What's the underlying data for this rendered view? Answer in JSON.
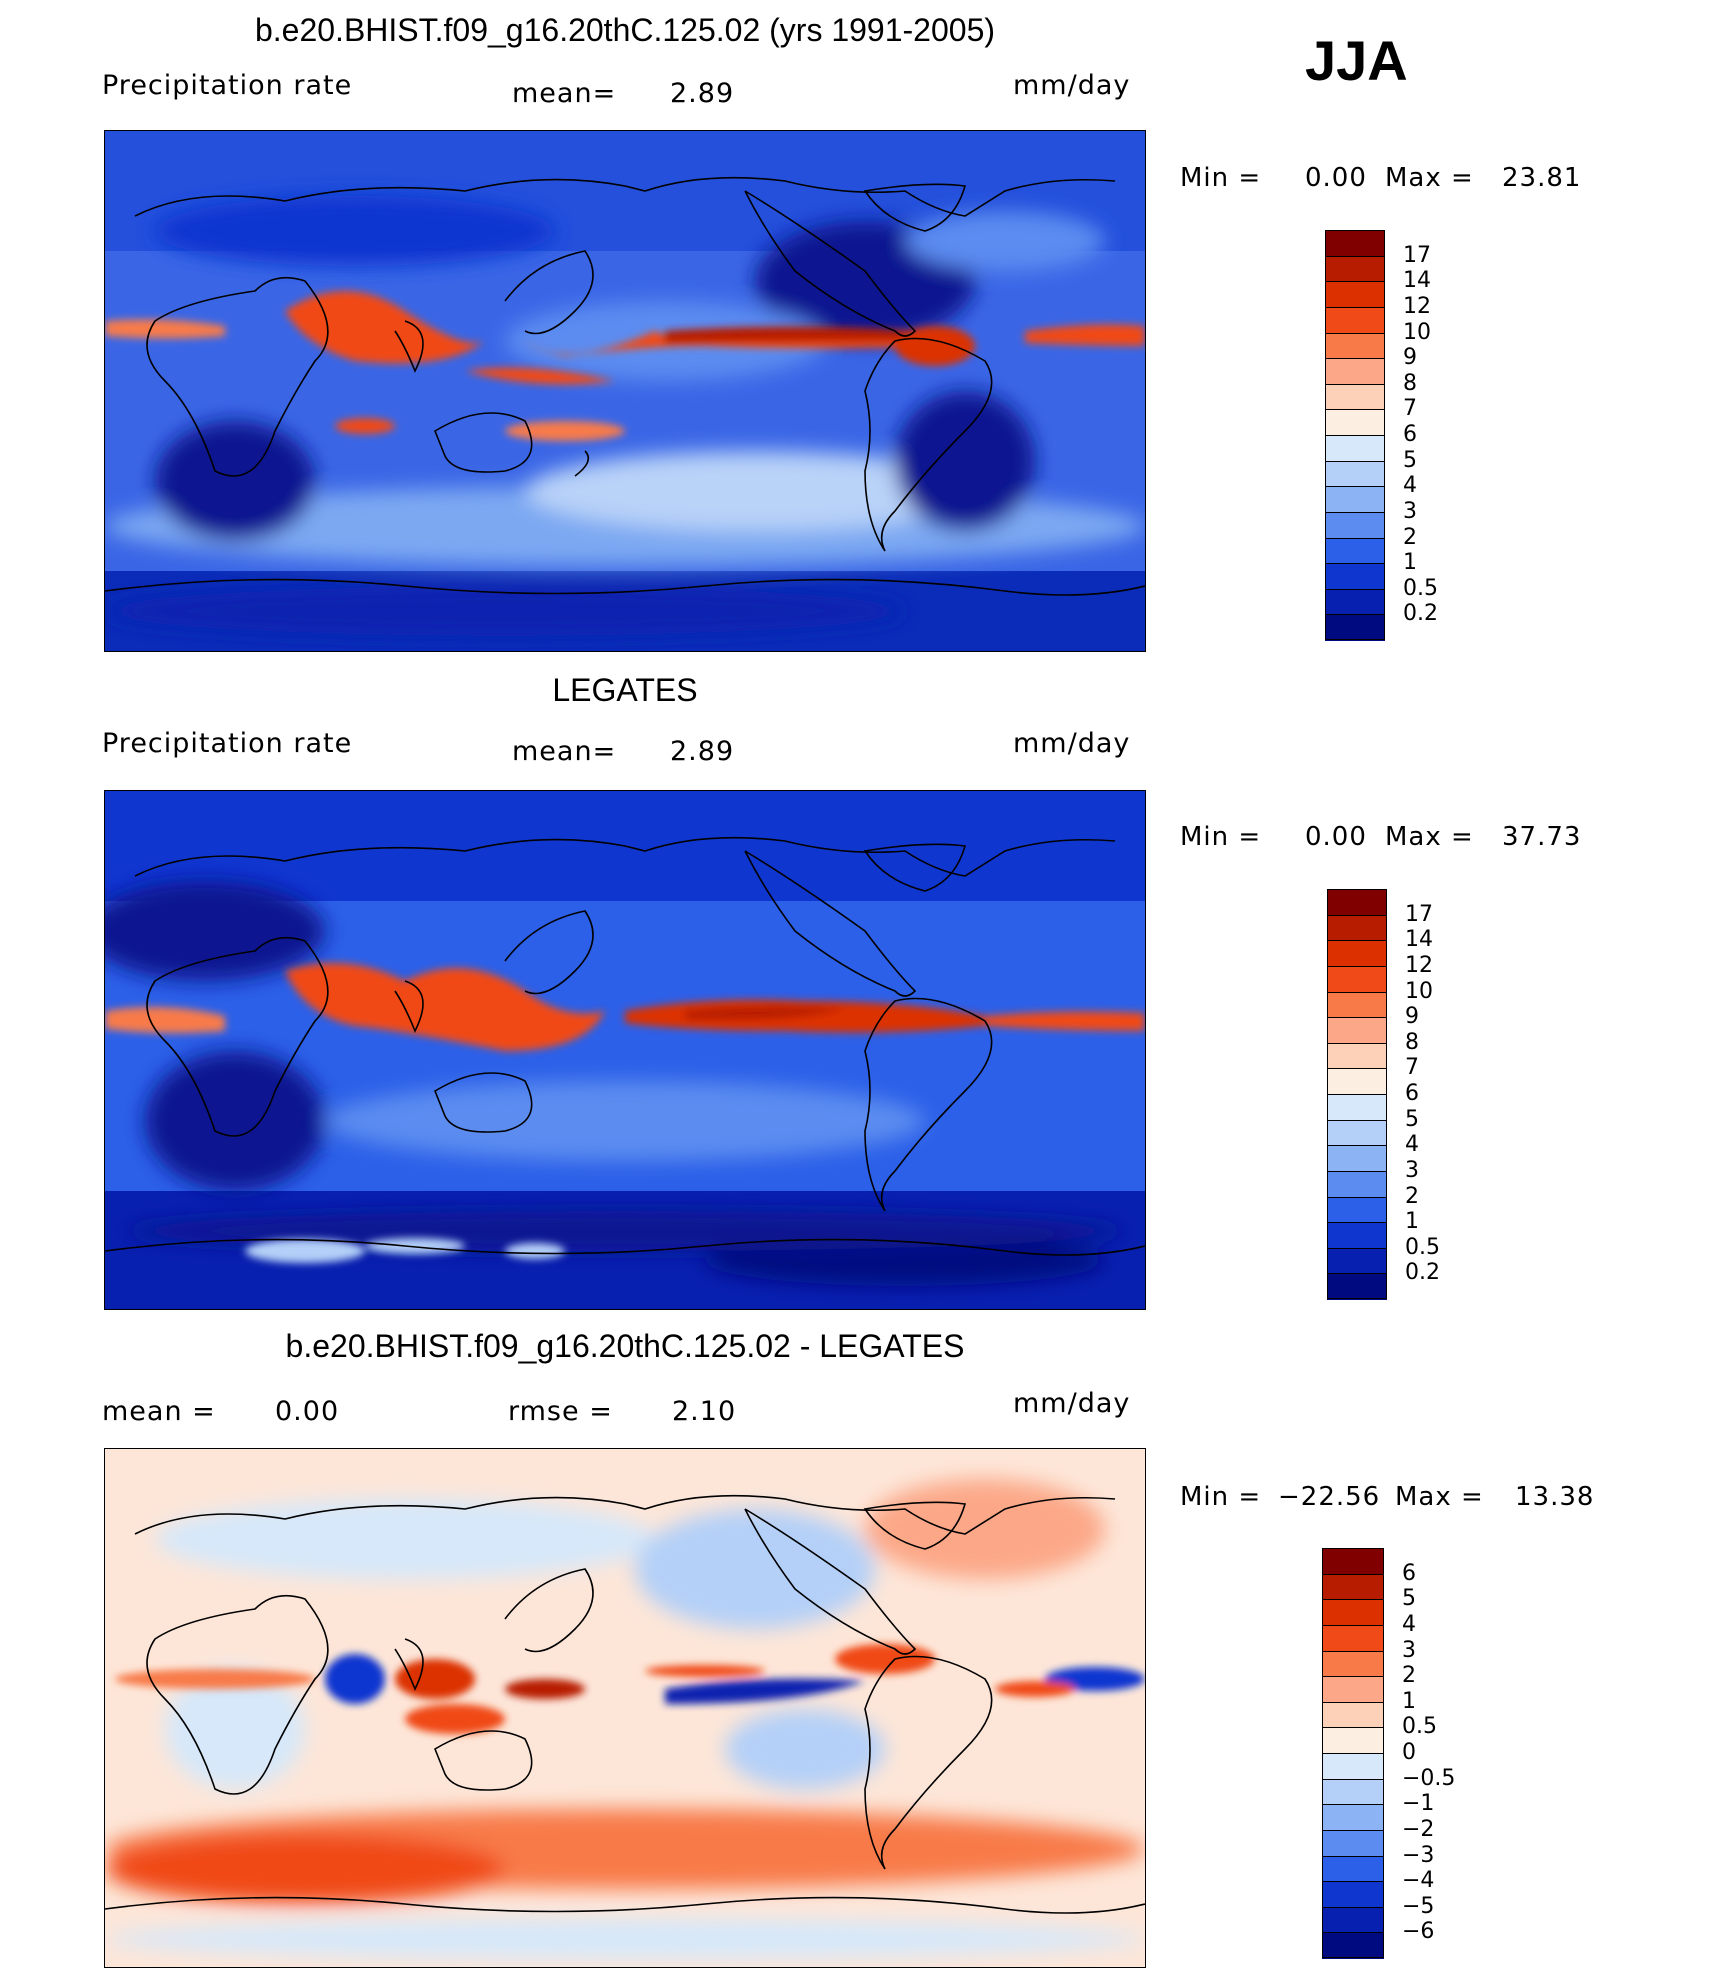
{
  "season": "JJA",
  "panels": [
    {
      "title": "b.e20.BHIST.f09_g16.20thC.125.02 (yrs 1991-2005)",
      "left_label": "Precipitation  rate",
      "center_label": "mean=",
      "center_value": "2.89",
      "units": "mm/day",
      "minmax": {
        "min_label": "Min  =",
        "min_value": "0.00",
        "max_label": "Max  =",
        "max_value": "23.81"
      },
      "colorbar": {
        "labels": [
          "17",
          "14",
          "12",
          "10",
          "9",
          "8",
          "7",
          "6",
          "5",
          "4",
          "3",
          "2",
          "1",
          "0.5",
          "0.2"
        ],
        "colors": [
          "#800000",
          "#b71c00",
          "#dc3000",
          "#f04a18",
          "#f87a48",
          "#fca888",
          "#fdd0b8",
          "#fdeee2",
          "#d6e8fa",
          "#b4d0f8",
          "#8cb4f4",
          "#5c8cf0",
          "#2c60e8",
          "#1036d0",
          "#0820b0",
          "#000a80"
        ]
      }
    },
    {
      "title": "LEGATES",
      "left_label": "Precipitation  rate",
      "center_label": "mean=",
      "center_value": "2.89",
      "units": "mm/day",
      "minmax": {
        "min_label": "Min  =",
        "min_value": "0.00",
        "max_label": "Max  =",
        "max_value": "37.73"
      },
      "colorbar": {
        "labels": [
          "17",
          "14",
          "12",
          "10",
          "9",
          "8",
          "7",
          "6",
          "5",
          "4",
          "3",
          "2",
          "1",
          "0.5",
          "0.2"
        ],
        "colors": [
          "#800000",
          "#b71c00",
          "#dc3000",
          "#f04a18",
          "#f87a48",
          "#fca888",
          "#fdd0b8",
          "#fdeee2",
          "#d6e8fa",
          "#b4d0f8",
          "#8cb4f4",
          "#5c8cf0",
          "#2c60e8",
          "#1036d0",
          "#0820b0",
          "#000a80"
        ]
      }
    },
    {
      "title": "b.e20.BHIST.f09_g16.20thC.125.02 - LEGATES",
      "left_label": "mean  =",
      "left_value": "0.00",
      "center_label": "rmse  =",
      "center_value": "2.10",
      "units": "mm/day",
      "minmax": {
        "min_label": "Min  =",
        "min_value": "−22.56",
        "max_label": "Max  =",
        "max_value": "13.38"
      },
      "colorbar": {
        "labels": [
          "6",
          "5",
          "4",
          "3",
          "2",
          "1",
          "0.5",
          "0",
          "−0.5",
          "−1",
          "−2",
          "−3",
          "−4",
          "−5",
          "−6"
        ],
        "colors": [
          "#800000",
          "#b71c00",
          "#dc3000",
          "#f04a18",
          "#f87a48",
          "#fca888",
          "#fdd0b8",
          "#fdeee2",
          "#d6e8fa",
          "#b4d0f8",
          "#8cb4f4",
          "#5c8cf0",
          "#2c60e8",
          "#1036d0",
          "#0820b0",
          "#000a80"
        ]
      }
    }
  ]
}
